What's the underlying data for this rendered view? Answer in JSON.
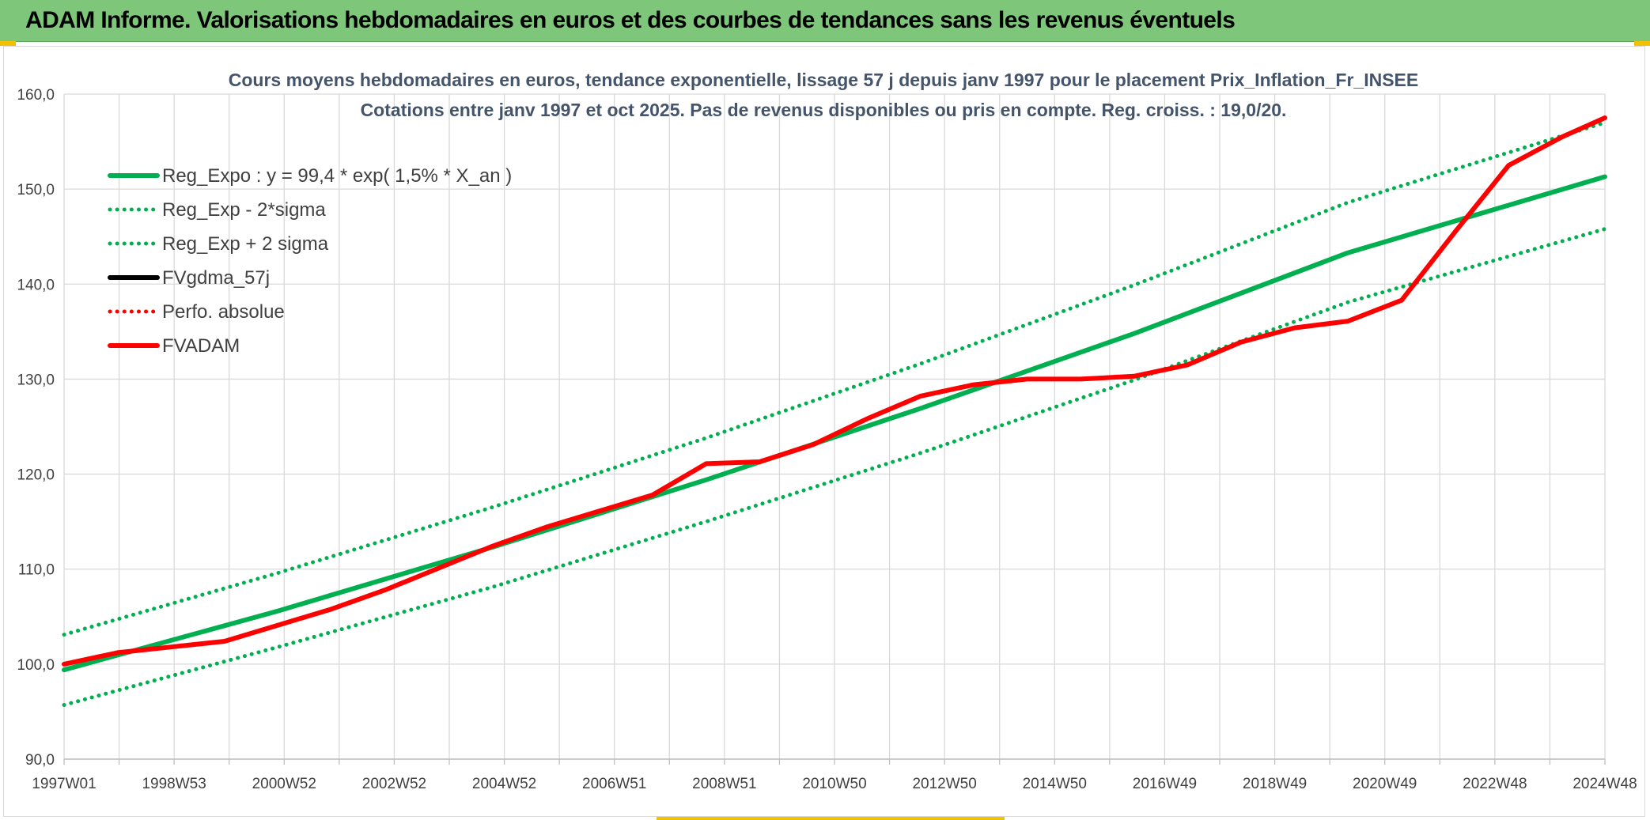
{
  "banner": {
    "title": "ADAM Informe. Valorisations hebdomadaires en euros et des courbes de tendances sans les revenus éventuels"
  },
  "colors": {
    "banner_bg": "#7dc67a",
    "green": "#00b050",
    "red": "#ff0000",
    "black": "#000000",
    "grid": "#d9d9d9",
    "title_text": "#44546a"
  },
  "chart_data": {
    "type": "line",
    "title": "Cours moyens hebdomadaires en euros, tendance exponentielle, lissage 57 j depuis janv 1997 pour le placement Prix_Inflation_Fr_INSEE",
    "subtitle": "Cotations entre janv 1997 et oct 2025. Pas de revenus disponibles ou pris en compte. Reg. croiss. : 19,0/20.",
    "xlabel": "",
    "ylabel": "",
    "ylim": [
      90,
      160
    ],
    "yticks": [
      "90,0",
      "100,0",
      "110,0",
      "120,0",
      "130,0",
      "140,0",
      "150,0",
      "160,0"
    ],
    "x_tick_labels": [
      "1997W01",
      "1998W53",
      "2000W52",
      "2002W52",
      "2004W52",
      "2006W51",
      "2008W51",
      "2010W50",
      "2012W50",
      "2014W50",
      "2016W49",
      "2018W49",
      "2020W49",
      "2022W48",
      "2024W48"
    ],
    "xlim": [
      1997.0,
      2025.8
    ],
    "grid": true,
    "legend_position": "top-left",
    "series": [
      {
        "name": "Reg_Expo : y = 99,4 * exp( 1,5% *  X_an )",
        "style": "solid",
        "color": "#00b050",
        "points": [
          [
            1997.0,
            99.4
          ],
          [
            2001.0,
            105.6
          ],
          [
            2005.0,
            112.3
          ],
          [
            2009.0,
            119.4
          ],
          [
            2013.0,
            126.9
          ],
          [
            2017.0,
            134.8
          ],
          [
            2021.0,
            143.3
          ],
          [
            2025.8,
            151.3
          ]
        ]
      },
      {
        "name": "Reg_Exp - 2*sigma",
        "style": "dotted",
        "color": "#00b050",
        "points": [
          [
            1997.0,
            95.7
          ],
          [
            2001.0,
            101.8
          ],
          [
            2005.0,
            108.1
          ],
          [
            2009.0,
            115.0
          ],
          [
            2013.0,
            122.2
          ],
          [
            2017.0,
            129.9
          ],
          [
            2021.0,
            138.1
          ],
          [
            2025.8,
            145.8
          ]
        ]
      },
      {
        "name": "Reg_Exp + 2 sigma",
        "style": "dotted",
        "color": "#00b050",
        "points": [
          [
            1997.0,
            103.1
          ],
          [
            2001.0,
            109.6
          ],
          [
            2005.0,
            116.5
          ],
          [
            2009.0,
            123.8
          ],
          [
            2013.0,
            131.6
          ],
          [
            2017.0,
            139.9
          ],
          [
            2021.0,
            148.6
          ],
          [
            2025.8,
            157.0
          ]
        ]
      },
      {
        "name": "FVgdma_57j",
        "style": "solid",
        "color": "#000000",
        "points": []
      },
      {
        "name": "Perfo. absolue",
        "style": "dotted",
        "color": "#ff0000",
        "points": []
      },
      {
        "name": "FVADAM",
        "style": "solid",
        "color": "#ff0000",
        "points": [
          [
            1997.0,
            100.0
          ],
          [
            1998.0,
            101.2
          ],
          [
            1999.0,
            101.8
          ],
          [
            2000.0,
            102.4
          ],
          [
            2001.0,
            104.1
          ],
          [
            2002.0,
            105.8
          ],
          [
            2003.0,
            107.8
          ],
          [
            2004.0,
            110.1
          ],
          [
            2005.0,
            112.4
          ],
          [
            2006.0,
            114.4
          ],
          [
            2007.0,
            116.1
          ],
          [
            2008.0,
            117.8
          ],
          [
            2009.0,
            121.1
          ],
          [
            2010.0,
            121.3
          ],
          [
            2011.0,
            123.1
          ],
          [
            2012.0,
            125.8
          ],
          [
            2013.0,
            128.2
          ],
          [
            2014.0,
            129.4
          ],
          [
            2015.0,
            130.0
          ],
          [
            2016.0,
            130.0
          ],
          [
            2017.0,
            130.3
          ],
          [
            2018.0,
            131.5
          ],
          [
            2019.0,
            133.9
          ],
          [
            2020.0,
            135.4
          ],
          [
            2021.0,
            136.1
          ],
          [
            2022.0,
            138.3
          ],
          [
            2023.0,
            145.5
          ],
          [
            2024.0,
            152.5
          ],
          [
            2025.0,
            155.5
          ],
          [
            2025.8,
            157.5
          ]
        ]
      }
    ]
  }
}
